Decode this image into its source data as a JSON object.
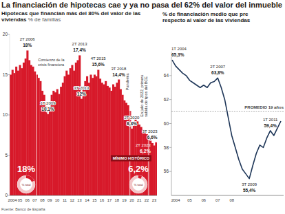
{
  "title": "La financiación de hipotecas cae y ya no pasa del 62% del valor del inmueble",
  "source": "Fuente: Banco de España",
  "chart_data": [
    {
      "type": "bar",
      "title": "Hipotecas que financian más del 80% del valor de las viviendas",
      "subtitle": "% de familias",
      "categories": [
        null,
        "2004",
        null,
        null,
        null,
        "05",
        null,
        null,
        null,
        "06",
        null,
        null,
        null,
        "07",
        null,
        null,
        null,
        "08",
        null,
        null,
        null,
        "09",
        null,
        null,
        null,
        "10",
        null,
        null,
        null,
        "11",
        null,
        null,
        null,
        "12",
        null,
        null,
        null,
        "13",
        null,
        null,
        null,
        "14",
        null,
        null,
        null,
        "15",
        null,
        null,
        null,
        "16",
        null,
        null,
        null,
        "17",
        null,
        null,
        null,
        "18",
        null,
        null,
        null,
        "19",
        null,
        null,
        null,
        "20",
        null,
        null,
        null,
        "21",
        null,
        null,
        null,
        "22",
        null,
        null,
        null,
        "23",
        null
      ],
      "values": [
        15.0,
        15.6,
        15.2,
        16.0,
        15.5,
        16.2,
        15.8,
        16.5,
        17.0,
        18.0,
        16.8,
        16.2,
        16.0,
        15.4,
        15.0,
        14.6,
        14.2,
        13.0,
        12.5,
        11.0,
        10.1,
        11.0,
        12.5,
        13.0,
        12.8,
        13.2,
        12.6,
        13.5,
        14.0,
        14.8,
        15.5,
        15.0,
        15.8,
        16.2,
        15.5,
        16.5,
        16.8,
        17.4,
        12.0,
        13.5,
        14.2,
        14.8,
        14.0,
        15.0,
        14.6,
        15.0,
        14.8,
        15.6,
        14.5,
        14.0,
        13.8,
        14.2,
        13.6,
        13.4,
        13.0,
        13.8,
        13.5,
        14.0,
        14.4,
        13.2,
        12.5,
        11.8,
        11.5,
        11.2,
        10.5,
        8.3,
        9.0,
        9.5,
        9.2,
        8.8,
        8.5,
        8.2,
        8.0,
        7.6,
        7.2,
        6.8,
        6.5,
        6.2,
        6.6
      ],
      "color": "#d7192a",
      "ylim": [
        0,
        20
      ],
      "yticks": [
        0,
        5,
        10,
        15,
        20
      ],
      "grid": false,
      "annotations": [
        {
          "label": "2T 2006",
          "value_label": "18%",
          "index": 9
        },
        {
          "label": "1T 2009",
          "value_label": "10,1%",
          "index": 20
        },
        {
          "label": "2T 2013",
          "value_label": "17,4%",
          "index": 37
        },
        {
          "label": "3T 2013",
          "value_label": "12%",
          "index": 38
        },
        {
          "label": "4T 2015",
          "value_label": "15,6%",
          "index": 47
        },
        {
          "label": "3T 2018",
          "value_label": "14,4%",
          "index": 58
        },
        {
          "label": "2T 2020",
          "value_label": "8,3%",
          "index": 65
        },
        {
          "label": "2T 2023",
          "value_label": "6,2%",
          "index": 77,
          "note": "MÍNIMO HISTÓRICO"
        },
        {
          "label": "3T 2023",
          "value_label": "6,6%",
          "index": 78
        }
      ],
      "events": [
        {
          "label": "Comienzo de la crisis financiera",
          "index": 14
        },
        {
          "label": "Pandemia",
          "index": 64
        },
        {
          "label": "En julio de 2022, primera subida de tipos del BCE",
          "index": 74
        }
      ],
      "donuts": [
        {
          "value": 18,
          "label": "18%",
          "caption": "% total"
        },
        {
          "value": 6.2,
          "label": "6,2%",
          "caption": "% total"
        }
      ]
    },
    {
      "type": "line",
      "title": "% de financiación medio que pre",
      "subtitle": "respecto al valor de las viviendas",
      "categories": [
        null,
        "2004",
        null,
        null,
        null,
        "05",
        null,
        null,
        null,
        "06",
        null,
        null,
        null,
        "07",
        null,
        null,
        null,
        "08",
        null,
        null,
        null,
        null,
        null,
        null,
        null,
        null,
        null,
        null,
        null,
        null,
        null,
        null
      ],
      "values": [
        65.3,
        64.8,
        64.5,
        64.2,
        64.0,
        63.6,
        63.4,
        63.2,
        63.0,
        63.2,
        63.0,
        63.4,
        63.5,
        63.8,
        63.0,
        62.0,
        60.5,
        59.0,
        58.0,
        57.0,
        56.2,
        55.8,
        55.4,
        56.5,
        57.5,
        58.2,
        58.0,
        58.8,
        59.4,
        59.0,
        59.6,
        60.2
      ],
      "color": "#1d3557",
      "ylim": [
        54,
        66
      ],
      "yticks": [
        56,
        58,
        60,
        62,
        64
      ],
      "grid": false,
      "annotations": [
        {
          "label": "1T 2004",
          "value_label": "65,3%",
          "index": 0
        },
        {
          "label": "2T 2007",
          "value_label": "63,8%",
          "index": 13
        },
        {
          "label": "3T 2009",
          "value_label": "55,4%",
          "index": 22
        },
        {
          "label": "1T 2011",
          "value_label": "59,4%",
          "index": 28
        }
      ],
      "reference_line": {
        "value": 61,
        "label": "PROMEDIO 19 años"
      }
    }
  ]
}
